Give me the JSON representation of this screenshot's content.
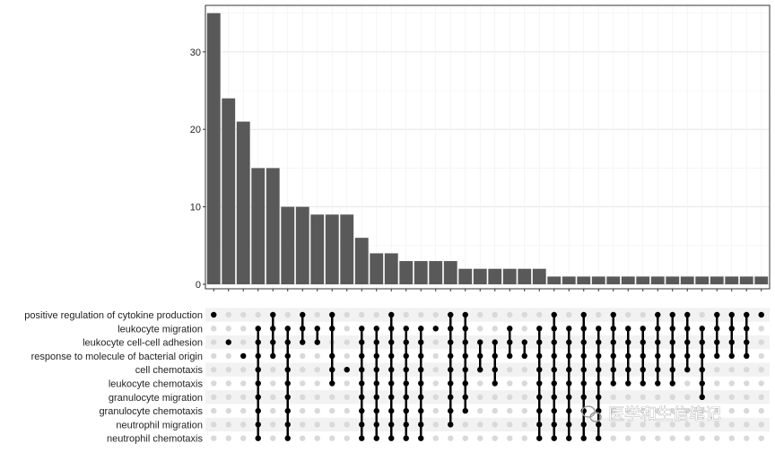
{
  "chart_data": {
    "type": "bar",
    "subtype": "upset",
    "bar_color": "#595959",
    "dot_color": "#000000",
    "inactive_dot_color": "#d9d9d9",
    "ylim": [
      0,
      36
    ],
    "yticks": [
      "0",
      "10",
      "20",
      "30"
    ],
    "sets": [
      "positive regulation of cytokine production",
      "leukocyte migration",
      "leukocyte cell-cell adhesion",
      "response to molecule of bacterial origin",
      "cell chemotaxis",
      "leukocyte chemotaxis",
      "granulocyte migration",
      "granulocyte chemotaxis",
      "neutrophil migration",
      "neutrophil chemotaxis"
    ],
    "values": [
      35,
      24,
      21,
      15,
      15,
      10,
      10,
      9,
      9,
      9,
      6,
      4,
      4,
      3,
      3,
      3,
      3,
      2,
      2,
      2,
      2,
      2,
      2,
      1,
      1,
      1,
      1,
      1,
      1,
      1,
      1,
      1,
      1,
      1,
      1,
      1,
      1,
      1
    ],
    "intersections": [
      [
        0
      ],
      [
        2
      ],
      [
        3
      ],
      [
        1,
        2,
        3,
        4,
        5,
        6,
        7,
        8,
        9
      ],
      [
        0,
        1,
        2,
        3
      ],
      [
        1,
        2,
        3,
        4,
        5,
        6,
        7,
        8,
        9
      ],
      [
        0,
        1,
        2
      ],
      [
        1,
        2
      ],
      [
        0,
        1,
        3,
        4,
        5
      ],
      [
        4
      ],
      [
        1,
        2,
        3,
        4,
        5,
        6,
        7,
        8,
        9
      ],
      [
        1,
        2,
        3,
        4,
        5,
        6,
        7,
        8,
        9
      ],
      [
        0,
        1,
        2,
        3,
        4,
        5,
        6,
        7,
        8,
        9
      ],
      [
        1,
        2,
        3,
        4,
        5,
        6,
        7,
        8,
        9
      ],
      [
        1,
        2,
        3,
        4,
        5,
        6,
        7,
        8,
        9
      ],
      [
        1
      ],
      [
        0,
        1,
        2,
        3,
        4,
        5,
        6,
        7,
        8
      ],
      [
        0,
        1,
        2,
        3,
        4,
        5,
        6,
        7
      ],
      [
        2,
        3,
        4
      ],
      [
        2,
        3,
        4,
        5
      ],
      [
        1,
        2,
        3
      ],
      [
        2,
        3
      ],
      [
        1,
        2,
        3,
        4,
        5,
        6,
        7,
        8,
        9
      ],
      [
        0,
        1,
        2,
        3,
        4,
        5,
        6,
        7,
        8,
        9
      ],
      [
        1,
        2,
        3,
        4,
        5,
        6,
        7,
        8,
        9
      ],
      [
        0,
        1,
        2,
        3,
        4,
        5,
        6,
        7,
        8,
        9
      ],
      [
        1,
        2,
        3,
        4,
        5,
        6,
        7,
        8,
        9
      ],
      [
        0,
        1,
        2,
        3,
        4,
        5
      ],
      [
        1,
        2,
        3,
        4,
        5
      ],
      [
        1,
        2,
        3,
        4,
        5
      ],
      [
        0,
        1,
        2,
        3,
        4,
        5
      ],
      [
        0,
        1,
        2,
        3,
        4,
        5
      ],
      [
        0,
        1,
        2,
        3,
        4
      ],
      [
        1,
        2,
        3,
        4,
        5,
        6
      ],
      [
        0,
        1,
        2,
        3
      ],
      [
        0,
        1,
        2,
        3
      ],
      [
        0,
        1,
        2,
        3
      ],
      [
        0
      ]
    ]
  },
  "watermark": {
    "icon": "wechat-icon",
    "text": "医学和生信笔记"
  }
}
